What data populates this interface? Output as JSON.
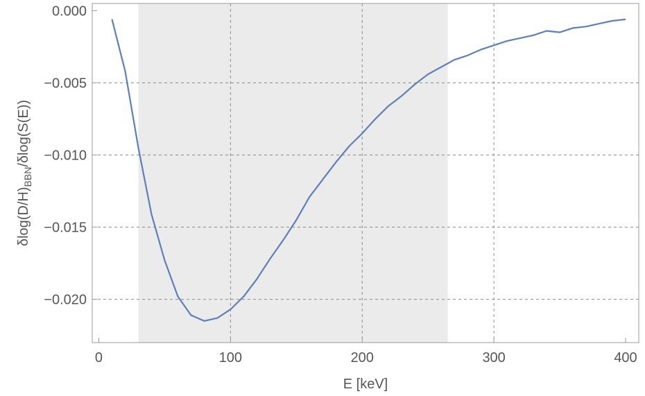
{
  "chart_data": {
    "type": "line",
    "title": "",
    "xlabel": "E [keV]",
    "ylabel": {
      "prefix": "δlog(D/H)",
      "subscript": "BBN",
      "suffix": "/δlog(S(E))"
    },
    "xlim": [
      -5,
      410
    ],
    "ylim": [
      -0.023,
      0.0005
    ],
    "x_ticks": [
      0,
      100,
      200,
      300,
      400
    ],
    "x_tick_labels": [
      "0",
      "100",
      "200",
      "300",
      "400"
    ],
    "y_ticks": [
      0.0,
      -0.005,
      -0.01,
      -0.015,
      -0.02
    ],
    "y_tick_labels": [
      "0.000",
      "-0.005",
      "-0.010",
      "-0.015",
      "-0.020"
    ],
    "x_gridlines": [
      100,
      200,
      300
    ],
    "y_gridlines": [
      -0.005,
      -0.01,
      -0.015,
      -0.02
    ],
    "grid": "dashed",
    "shaded_region": {
      "x_from": 30,
      "x_to": 265,
      "color": "#ebebeb"
    },
    "series": [
      {
        "color": "#5d7fb8",
        "x": [
          10,
          20,
          30,
          40,
          50,
          60,
          70,
          80,
          90,
          100,
          110,
          120,
          130,
          140,
          150,
          160,
          170,
          180,
          190,
          200,
          210,
          220,
          230,
          240,
          250,
          260,
          270,
          280,
          290,
          300,
          310,
          320,
          330,
          340,
          350,
          360,
          370,
          380,
          390,
          400
        ],
        "y": [
          -0.0006,
          -0.0042,
          -0.0095,
          -0.0141,
          -0.0173,
          -0.0198,
          -0.0211,
          -0.0215,
          -0.0213,
          -0.0207,
          -0.0198,
          -0.0186,
          -0.0172,
          -0.0159,
          -0.0145,
          -0.0129,
          -0.0117,
          -0.0105,
          -0.0094,
          -0.0085,
          -0.0075,
          -0.0066,
          -0.0059,
          -0.0051,
          -0.0044,
          -0.0039,
          -0.0034,
          -0.0031,
          -0.0027,
          -0.0024,
          -0.0021,
          -0.0019,
          -0.0017,
          -0.0014,
          -0.0015,
          -0.0012,
          -0.0011,
          -0.0009,
          -0.0007,
          -0.0006
        ]
      }
    ]
  }
}
